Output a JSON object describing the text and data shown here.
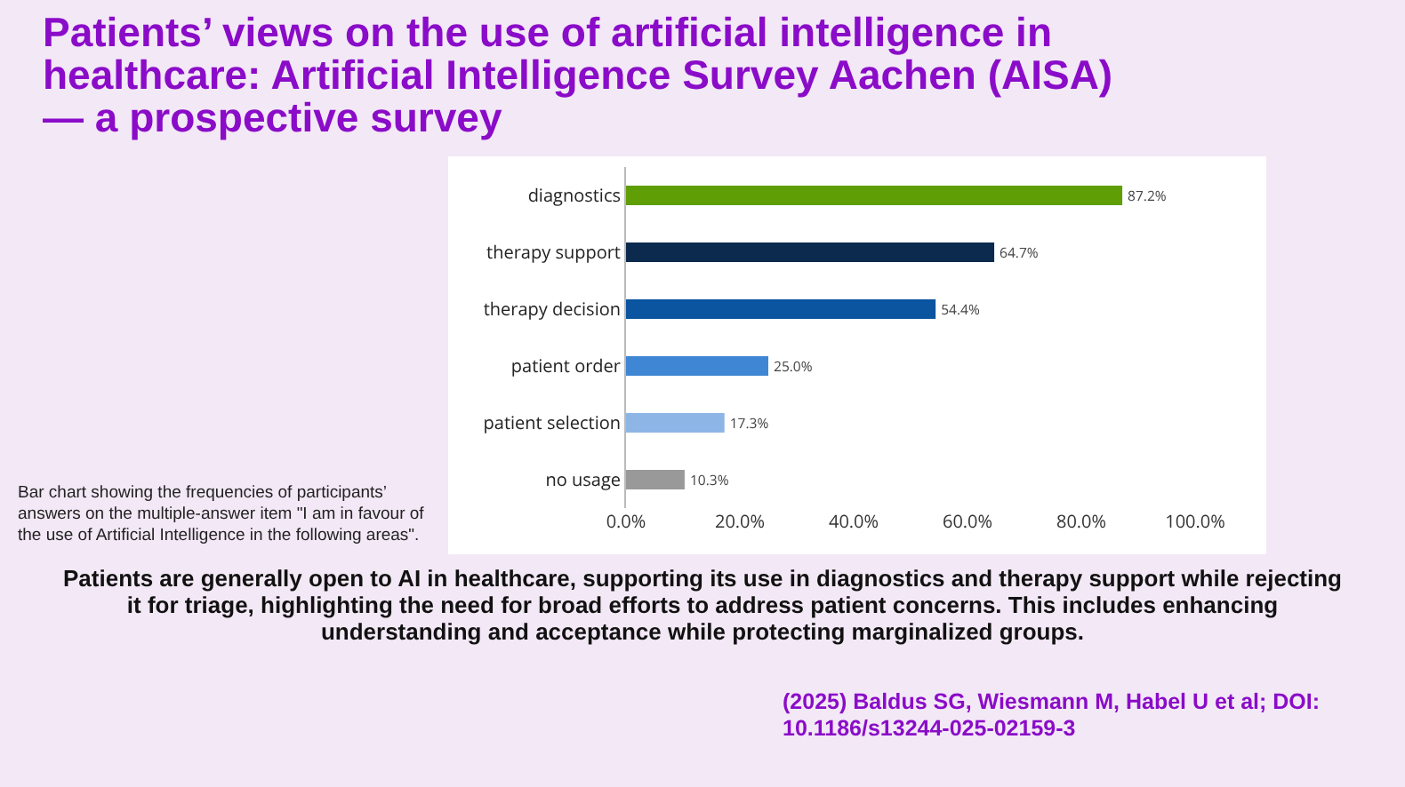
{
  "chart_data": {
    "type": "bar",
    "orientation": "horizontal",
    "title": "Patients’ views on the use of artificial intelligence in healthcare: Artificial Intelligence Survey Aachen (AISA) — a prospective survey",
    "categories": [
      "diagnostics",
      "therapy support",
      "therapy decision",
      "patient order",
      "patient selection",
      "no usage"
    ],
    "values": [
      87.2,
      64.7,
      54.4,
      25.0,
      17.3,
      10.3
    ],
    "colors": [
      "#5f9e04",
      "#0c2a4e",
      "#0a54a0",
      "#3f86d4",
      "#8db6e6",
      "#999999"
    ],
    "value_labels": [
      "87.2%",
      "64.7%",
      "54.4%",
      "25.0%",
      "17.3%",
      "10.3%"
    ],
    "xlim": [
      0,
      100
    ],
    "xticks": [
      {
        "value": 0,
        "label": "0.0%"
      },
      {
        "value": 20,
        "label": "20.0%"
      },
      {
        "value": 40,
        "label": "40.0%"
      },
      {
        "value": 60,
        "label": "60.0%"
      },
      {
        "value": 80,
        "label": "80.0%"
      },
      {
        "value": 100,
        "label": "100.0%"
      }
    ],
    "grid": false,
    "legend": false,
    "annotations": [
      "Bar chart showing the frequencies of participants’ answers on the multiple-answer item \"I am in favour of the use of Artificial Intelligence in the following areas\".",
      "Patients are generally open to AI in healthcare, supporting its use in diagnostics and therapy support while rejecting it for triage, highlighting the need for broad efforts to address patient concerns. This includes enhancing understanding and acceptance while protecting marginalized groups.",
      "(2025) Baldus SG, Wiesmann M, Habel U et al; DOI: 10.1186/s13244-025-02159-3"
    ]
  }
}
